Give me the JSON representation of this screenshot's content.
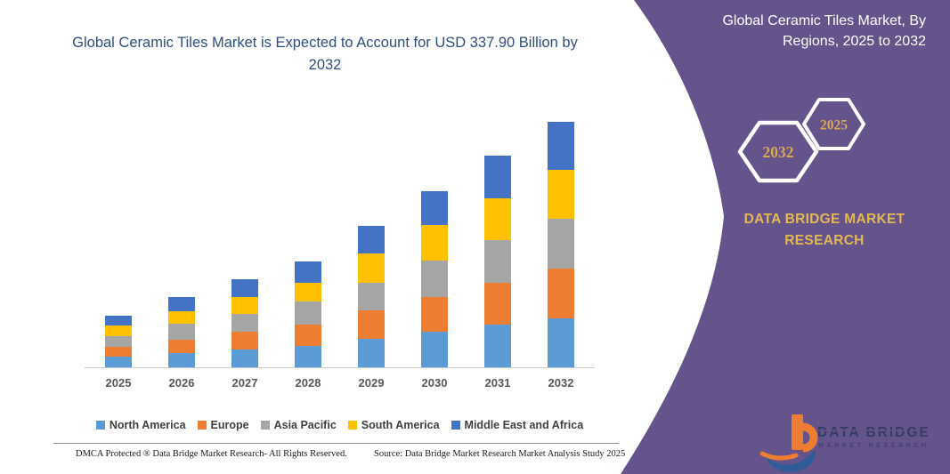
{
  "page": {
    "background": "#FFFFFF"
  },
  "chart": {
    "title": "Global Ceramic Tiles Market is Expected to Account for USD 337.90 Billion by 2032",
    "title_color": "#2F4E7E"
  },
  "chart_data": {
    "type": "bar",
    "stacked": true,
    "title": "Global Ceramic Tiles Market is Expected to Account for USD 337.90 Billion by 2032",
    "unit": "USD Billion",
    "xlabel": "",
    "ylabel": "",
    "ylim": [
      0,
      340
    ],
    "grid": false,
    "legend_position": "bottom",
    "categories": [
      "2025",
      "2026",
      "2027",
      "2028",
      "2029",
      "2030",
      "2031",
      "2032"
    ],
    "series": [
      {
        "name": "North America",
        "color": "#5B9BD5",
        "values": [
          14.4,
          20.0,
          24.2,
          29.8,
          38.9,
          48.8,
          58.9,
          67.8
        ]
      },
      {
        "name": "Europe",
        "color": "#ED7D31",
        "values": [
          14.2,
          18.2,
          24.4,
          29.0,
          39.2,
          47.5,
          56.8,
          68.3
        ]
      },
      {
        "name": "Asia Pacific",
        "color": "#A5A5A5",
        "values": [
          14.6,
          22.0,
          25.2,
          31.3,
          38.5,
          50.6,
          59.6,
          68.7
        ]
      },
      {
        "name": "South America",
        "color": "#FFC000",
        "values": [
          13.8,
          17.0,
          22.3,
          25.8,
          39.7,
          48.5,
          56.7,
          66.8
        ]
      },
      {
        "name": "Middle East and Africa",
        "color": "#4472C4",
        "values": [
          14.5,
          18.8,
          25.0,
          30.0,
          37.8,
          47.0,
          58.8,
          66.3
        ]
      }
    ],
    "totals_usd_billion": [
      71.5,
      96.0,
      121.1,
      145.9,
      194.1,
      242.4,
      290.8,
      337.9
    ]
  },
  "side_panel": {
    "background_color": "#65538B",
    "title": "Global Ceramic Tiles Market, By Regions, 2025 to 2032",
    "hexagons": [
      {
        "label": "2032"
      },
      {
        "label": "2025"
      }
    ],
    "hexagon_text_color": "#D9A94F",
    "brand_text": "DATA BRIDGE MARKET RESEARCH"
  },
  "logo": {
    "line1": "DATA BRIDGE",
    "line2": "MARKET RESEARCH"
  },
  "footer": {
    "left": "DMCA Protected ® Data Bridge Market Research- All Rights Reserved.",
    "right": "Source: Data Bridge Market Research Market Analysis Study 2025"
  }
}
